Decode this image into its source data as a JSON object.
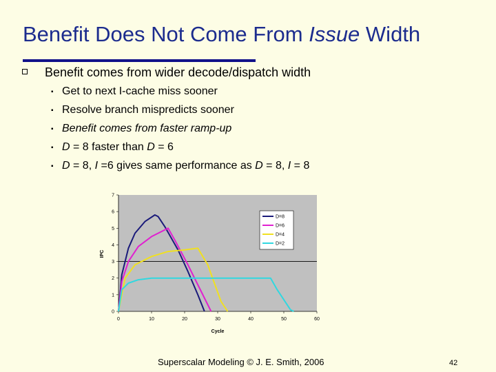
{
  "slide": {
    "title_prefix": "Benefit Does Not Come From ",
    "title_italic": "Issue",
    "title_suffix": " Width",
    "main_bullet": "Benefit comes from wider decode/dispatch width",
    "sub_bullets": {
      "b1": "Get to next I-cache miss sooner",
      "b2": "Resolve branch mispredicts sooner",
      "b3": "Benefit comes from faster ramp-up",
      "b4_d1": "D",
      "b4_mid": " = 8 faster than ",
      "b4_d2": "D",
      "b4_end": " = 6",
      "b5_d1": "D",
      "b5_a": " = 8, ",
      "b5_i1": "I",
      "b5_b": " =6 gives same performance as ",
      "b5_d2": "D",
      "b5_c": " = 8, ",
      "b5_i2": "I",
      "b5_d": " = 8"
    },
    "footer": "Superscalar Modeling © J. E. Smith, 2006",
    "page_number": "42"
  },
  "chart_data": {
    "type": "line",
    "xlabel": "Cycle",
    "ylabel": "IPC",
    "xlim": [
      0,
      60
    ],
    "ylim": [
      0,
      7
    ],
    "x_ticks": [
      0,
      10,
      20,
      30,
      40,
      50,
      60
    ],
    "y_ticks": [
      0,
      1,
      2,
      3,
      4,
      5,
      6,
      7
    ],
    "reference_line_y": 3,
    "legend_position": "top-right",
    "series": [
      {
        "name": "D=8",
        "color": "#1a1a7a",
        "x": [
          0,
          1,
          3,
          5,
          8,
          11,
          12,
          14,
          18,
          21,
          24,
          26
        ],
        "y": [
          0,
          2.2,
          3.8,
          4.7,
          5.4,
          5.8,
          5.7,
          5.1,
          3.7,
          2.4,
          1.0,
          0
        ]
      },
      {
        "name": "D=6",
        "color": "#e020d0",
        "x": [
          0,
          1,
          3,
          6,
          10,
          14,
          15,
          17,
          21,
          25,
          28
        ],
        "y": [
          0,
          1.8,
          3.0,
          3.9,
          4.5,
          4.9,
          5.0,
          4.3,
          2.8,
          1.2,
          0
        ]
      },
      {
        "name": "D=4",
        "color": "#f0e020",
        "x": [
          0,
          2,
          5,
          10,
          15,
          20,
          24,
          27,
          29,
          31,
          33
        ],
        "y": [
          0,
          2.0,
          2.8,
          3.3,
          3.6,
          3.7,
          3.8,
          2.8,
          1.7,
          0.6,
          0
        ]
      },
      {
        "name": "D=2",
        "color": "#30d8e0",
        "x": [
          0,
          1,
          3,
          6,
          10,
          15,
          20,
          46,
          48,
          50,
          52,
          53
        ],
        "y": [
          0,
          1.3,
          1.7,
          1.9,
          2.0,
          2.0,
          2.0,
          2.0,
          1.3,
          0.7,
          0.1,
          0
        ]
      }
    ]
  }
}
